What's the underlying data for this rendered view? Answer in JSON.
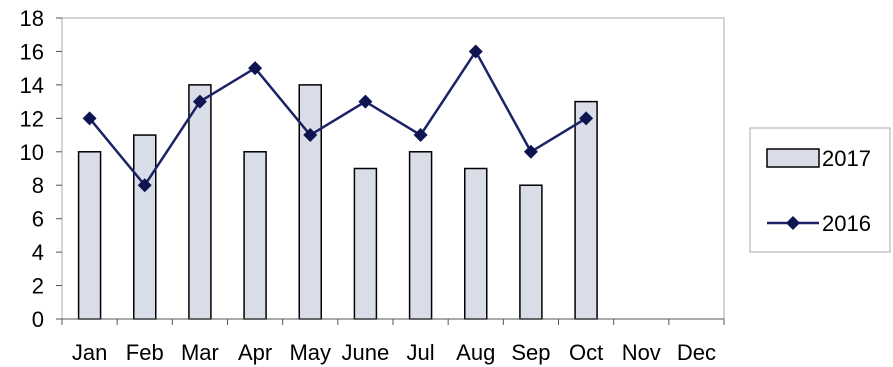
{
  "chart_data": {
    "type": "bar",
    "categories": [
      "Jan",
      "Feb",
      "Mar",
      "Apr",
      "May",
      "June",
      "Jul",
      "Aug",
      "Sep",
      "Oct",
      "Nov",
      "Dec"
    ],
    "series": [
      {
        "name": "2017",
        "type": "bar",
        "values": [
          10,
          11,
          14,
          10,
          14,
          9,
          10,
          9,
          8,
          13,
          null,
          null
        ]
      },
      {
        "name": "2016",
        "type": "line",
        "values": [
          12,
          8,
          13,
          15,
          11,
          13,
          11,
          16,
          10,
          12,
          null,
          null
        ]
      }
    ],
    "y_ticks": [
      "0",
      "2",
      "4",
      "6",
      "8",
      "10",
      "12",
      "14",
      "16",
      "18"
    ],
    "ylim": [
      0,
      18
    ],
    "grid": false,
    "legend_position": "right",
    "colors": {
      "bar_fill": "#d9dde8",
      "bar_stroke": "#000000",
      "line": "#1b2366",
      "marker": "#0d1450"
    }
  }
}
